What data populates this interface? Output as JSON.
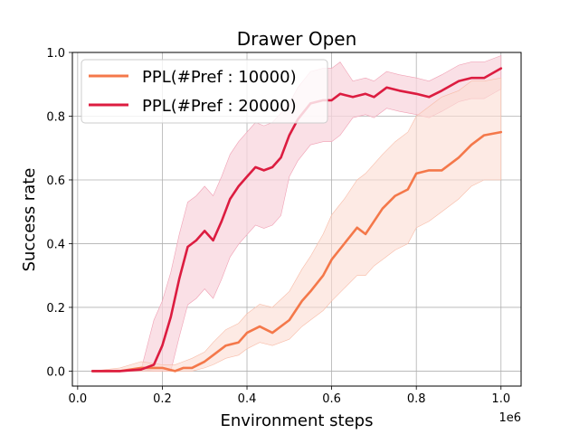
{
  "chart_data": {
    "type": "line",
    "title": "Drawer Open",
    "xlabel": "Environment steps",
    "ylabel": "Success rate",
    "x_scale_label": "1e6",
    "xlim": [
      -0.0125,
      1.0475
    ],
    "ylim": [
      -0.047,
      1.0
    ],
    "x_ticks": [
      0.0,
      0.2,
      0.4,
      0.6,
      0.8,
      1.0
    ],
    "x_tick_labels": [
      "0.0",
      "0.2",
      "0.4",
      "0.6",
      "0.8",
      "1.0"
    ],
    "y_ticks": [
      0.0,
      0.2,
      0.4,
      0.6,
      0.8,
      1.0
    ],
    "y_tick_labels": [
      "0.0",
      "0.2",
      "0.4",
      "0.6",
      "0.8",
      "1.0"
    ],
    "grid": true,
    "legend_position": "top-left",
    "series": [
      {
        "name": "PPL(#Pref : 10000)",
        "color": "#f4784a",
        "band_color": "#fcdcd2",
        "x": [
          0.035,
          0.1,
          0.15,
          0.2,
          0.23,
          0.25,
          0.27,
          0.3,
          0.32,
          0.35,
          0.38,
          0.4,
          0.43,
          0.46,
          0.5,
          0.53,
          0.55,
          0.58,
          0.6,
          0.63,
          0.66,
          0.68,
          0.7,
          0.72,
          0.75,
          0.78,
          0.8,
          0.83,
          0.86,
          0.9,
          0.93,
          0.96,
          1.0
        ],
        "y": [
          0.0,
          0.0,
          0.01,
          0.01,
          0.0,
          0.01,
          0.01,
          0.03,
          0.05,
          0.08,
          0.09,
          0.12,
          0.14,
          0.12,
          0.16,
          0.22,
          0.25,
          0.3,
          0.35,
          0.4,
          0.45,
          0.43,
          0.47,
          0.51,
          0.55,
          0.57,
          0.62,
          0.63,
          0.63,
          0.67,
          0.71,
          0.74,
          0.75
        ],
        "lower": [
          0.0,
          0.0,
          0.0,
          0.0,
          0.0,
          0.0,
          0.0,
          0.01,
          0.02,
          0.04,
          0.05,
          0.07,
          0.09,
          0.08,
          0.1,
          0.14,
          0.16,
          0.19,
          0.22,
          0.26,
          0.3,
          0.3,
          0.33,
          0.35,
          0.38,
          0.4,
          0.45,
          0.47,
          0.5,
          0.54,
          0.58,
          0.6,
          0.6
        ],
        "upper": [
          0.0,
          0.01,
          0.03,
          0.02,
          0.02,
          0.03,
          0.04,
          0.06,
          0.09,
          0.13,
          0.15,
          0.18,
          0.21,
          0.2,
          0.25,
          0.32,
          0.36,
          0.43,
          0.49,
          0.54,
          0.6,
          0.62,
          0.65,
          0.68,
          0.72,
          0.75,
          0.8,
          0.83,
          0.86,
          0.88,
          0.91,
          0.91,
          0.92
        ]
      },
      {
        "name": "PPL(#Pref : 20000)",
        "color": "#dc1c40",
        "band_color": "#f8d6de",
        "x": [
          0.035,
          0.1,
          0.15,
          0.18,
          0.2,
          0.22,
          0.24,
          0.26,
          0.28,
          0.3,
          0.32,
          0.34,
          0.36,
          0.38,
          0.4,
          0.42,
          0.44,
          0.46,
          0.48,
          0.5,
          0.52,
          0.55,
          0.58,
          0.6,
          0.62,
          0.65,
          0.68,
          0.7,
          0.73,
          0.76,
          0.8,
          0.83,
          0.86,
          0.9,
          0.93,
          0.96,
          1.0
        ],
        "y": [
          0.0,
          0.0,
          0.005,
          0.02,
          0.08,
          0.17,
          0.29,
          0.39,
          0.41,
          0.44,
          0.41,
          0.47,
          0.54,
          0.58,
          0.61,
          0.64,
          0.63,
          0.64,
          0.67,
          0.74,
          0.79,
          0.84,
          0.85,
          0.85,
          0.87,
          0.86,
          0.87,
          0.86,
          0.89,
          0.88,
          0.87,
          0.86,
          0.88,
          0.91,
          0.92,
          0.92,
          0.95
        ]
      }
    ]
  }
}
